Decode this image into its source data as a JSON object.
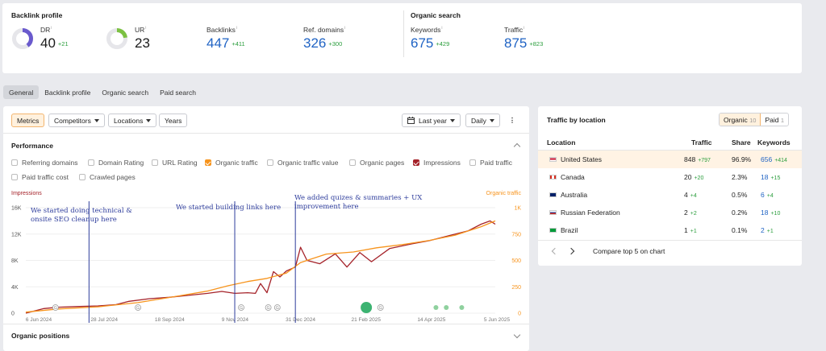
{
  "backlink_profile": {
    "title": "Backlink profile",
    "dr": {
      "label": "DR",
      "info": "i",
      "value": "40",
      "delta": "+21",
      "fill_percent": 40
    },
    "ur": {
      "label": "UR",
      "info": "i",
      "value": "23",
      "delta": "",
      "fill_percent": 23
    },
    "backlinks": {
      "label": "Backlinks",
      "info": "i",
      "value": "447",
      "delta": "+411"
    },
    "ref_domains": {
      "label": "Ref. domains",
      "info": "i",
      "value": "326",
      "delta": "+300"
    }
  },
  "organic_search": {
    "title": "Organic search",
    "keywords": {
      "label": "Keywords",
      "info": "i",
      "value": "675",
      "delta": "+429"
    },
    "traffic": {
      "label": "Traffic",
      "info": "i",
      "value": "875",
      "delta": "+823"
    }
  },
  "tabs": [
    "General",
    "Backlink profile",
    "Organic search",
    "Paid search"
  ],
  "toolbar": {
    "metrics": "Metrics",
    "competitors": "Competitors",
    "locations": "Locations",
    "years": "Years",
    "range": "Last year",
    "interval": "Daily"
  },
  "performance": {
    "title": "Performance",
    "checkboxes": [
      {
        "label": "Referring domains",
        "checked": false
      },
      {
        "label": "Domain Rating",
        "checked": false
      },
      {
        "label": "URL Rating",
        "checked": false
      },
      {
        "label": "Organic traffic",
        "checked": true,
        "color": "#f7941d"
      },
      {
        "label": "Organic traffic value",
        "checked": false
      },
      {
        "label": "Organic pages",
        "checked": false
      },
      {
        "label": "Impressions",
        "checked": true,
        "color": "#a5232a"
      },
      {
        "label": "Paid traffic",
        "checked": false
      },
      {
        "label": "Paid traffic cost",
        "checked": false
      },
      {
        "label": "Crawled pages",
        "checked": false
      }
    ]
  },
  "organic_positions": {
    "title": "Organic positions"
  },
  "chart_data": {
    "type": "line",
    "left_axis_title": "Impressions",
    "right_axis_title": "Organic traffic",
    "left_ticks": [
      "16K",
      "12K",
      "8K",
      "4K",
      "0"
    ],
    "left_range": [
      0,
      16000
    ],
    "right_ticks": [
      "1K",
      "750",
      "500",
      "250",
      "0"
    ],
    "right_range": [
      0,
      1000
    ],
    "x_labels": [
      "6 Jun 2024",
      "28 Jul 2024",
      "18 Sep 2024",
      "9 Nov 2024",
      "31 Dec 2024",
      "21 Feb 2025",
      "14 Apr 2025",
      "5 Jun 2025"
    ],
    "x_range": [
      "2024-06-06",
      "2025-06-05"
    ],
    "series": [
      {
        "name": "Impressions",
        "axis": "left",
        "color": "#a5232a",
        "points": [
          [
            "2024-06-06",
            0
          ],
          [
            "2024-06-20",
            700
          ],
          [
            "2024-07-01",
            900
          ],
          [
            "2024-07-15",
            1000
          ],
          [
            "2024-08-01",
            1100
          ],
          [
            "2024-08-15",
            1300
          ],
          [
            "2024-08-25",
            1800
          ],
          [
            "2024-09-10",
            2200
          ],
          [
            "2024-09-25",
            2400
          ],
          [
            "2024-10-10",
            2700
          ],
          [
            "2024-10-25",
            3000
          ],
          [
            "2024-11-05",
            3300
          ],
          [
            "2024-11-15",
            3000
          ],
          [
            "2024-11-25",
            3100
          ],
          [
            "2024-12-01",
            3000
          ],
          [
            "2024-12-05",
            4500
          ],
          [
            "2024-12-10",
            3100
          ],
          [
            "2024-12-15",
            6300
          ],
          [
            "2024-12-20",
            5500
          ],
          [
            "2024-12-25",
            6400
          ],
          [
            "2025-01-01",
            7000
          ],
          [
            "2025-01-05",
            10000
          ],
          [
            "2025-01-10",
            8000
          ],
          [
            "2025-01-20",
            7500
          ],
          [
            "2025-02-01",
            9000
          ],
          [
            "2025-02-10",
            7000
          ],
          [
            "2025-02-20",
            9200
          ],
          [
            "2025-03-01",
            7800
          ],
          [
            "2025-03-15",
            9800
          ],
          [
            "2025-04-01",
            10500
          ],
          [
            "2025-04-15",
            11000
          ],
          [
            "2025-05-01",
            11800
          ],
          [
            "2025-05-15",
            12500
          ],
          [
            "2025-05-25",
            13500
          ],
          [
            "2025-06-01",
            14000
          ],
          [
            "2025-06-05",
            13500
          ]
        ]
      },
      {
        "name": "Organic traffic",
        "axis": "right",
        "color": "#f7941d",
        "points": [
          [
            "2024-06-06",
            10
          ],
          [
            "2024-07-01",
            40
          ],
          [
            "2024-08-01",
            60
          ],
          [
            "2024-09-01",
            100
          ],
          [
            "2024-10-01",
            160
          ],
          [
            "2024-10-25",
            210
          ],
          [
            "2024-11-10",
            260
          ],
          [
            "2024-11-25",
            300
          ],
          [
            "2024-12-10",
            330
          ],
          [
            "2024-12-25",
            380
          ],
          [
            "2025-01-05",
            480
          ],
          [
            "2025-01-25",
            560
          ],
          [
            "2025-02-15",
            580
          ],
          [
            "2025-03-05",
            620
          ],
          [
            "2025-03-25",
            650
          ],
          [
            "2025-04-15",
            690
          ],
          [
            "2025-05-05",
            740
          ],
          [
            "2025-05-25",
            820
          ],
          [
            "2025-06-05",
            875
          ]
        ]
      }
    ],
    "annotations": [
      {
        "date": "2024-07-25",
        "text": "We started doing technical & onsite SEO cleanup here"
      },
      {
        "date": "2024-11-15",
        "text": "We started building links here"
      },
      {
        "date": "2025-01-01",
        "text": "We added quizes & summaries + UX improvement here"
      }
    ],
    "event_markers": [
      {
        "date": "2024-06-29",
        "label": "G"
      },
      {
        "date": "2024-09-01",
        "label": "G"
      },
      {
        "date": "2024-11-20",
        "label": "G"
      },
      {
        "date": "2024-12-11",
        "label": "G"
      },
      {
        "date": "2024-12-18",
        "label": "G"
      },
      {
        "date": "2025-02-25",
        "label": "",
        "big": true
      },
      {
        "date": "2025-03-08",
        "label": "G"
      },
      {
        "date": "2025-04-20",
        "label": ""
      },
      {
        "date": "2025-04-28",
        "label": ""
      },
      {
        "date": "2025-05-10",
        "label": ""
      }
    ]
  },
  "traffic_by_location": {
    "title": "Traffic by location",
    "toggle": {
      "organic": "Organic",
      "organic_count": "10",
      "paid": "Paid",
      "paid_count": "1"
    },
    "columns": [
      "Location",
      "Traffic",
      "Share",
      "Keywords"
    ],
    "rows": [
      {
        "flag": "us",
        "location": "United States",
        "traffic": "848",
        "traffic_delta": "+797",
        "share": "96.9%",
        "keywords": "656",
        "keywords_delta": "+414"
      },
      {
        "flag": "ca",
        "location": "Canada",
        "traffic": "20",
        "traffic_delta": "+20",
        "share": "2.3%",
        "keywords": "18",
        "keywords_delta": "+15"
      },
      {
        "flag": "au",
        "location": "Australia",
        "traffic": "4",
        "traffic_delta": "+4",
        "share": "0.5%",
        "keywords": "6",
        "keywords_delta": "+4"
      },
      {
        "flag": "ru",
        "location": "Russian Federation",
        "traffic": "2",
        "traffic_delta": "+2",
        "share": "0.2%",
        "keywords": "18",
        "keywords_delta": "+10"
      },
      {
        "flag": "br",
        "location": "Brazil",
        "traffic": "1",
        "traffic_delta": "+1",
        "share": "0.1%",
        "keywords": "2",
        "keywords_delta": "+1"
      }
    ],
    "compare_label": "Compare top 5 on chart"
  }
}
